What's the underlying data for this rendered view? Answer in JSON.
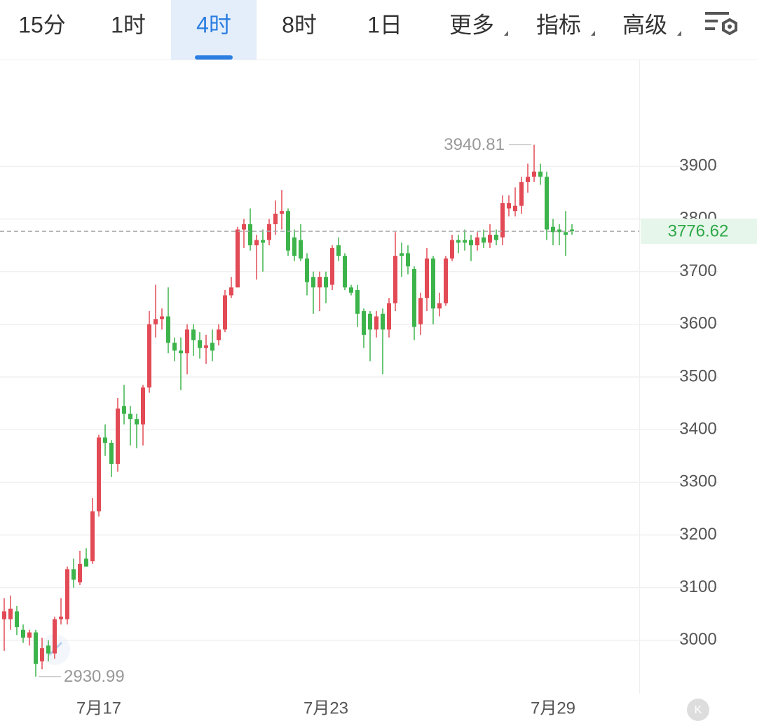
{
  "tabs": [
    "15分",
    "1时",
    "4时",
    "8时",
    "1日",
    "更多",
    "指标",
    "高级"
  ],
  "active_tab": 2,
  "chart_data": {
    "type": "candlestick",
    "categories": [
      null,
      null,
      null,
      null,
      null,
      null,
      null,
      null,
      null,
      null,
      null,
      null,
      null,
      null,
      null,
      "7月17",
      null,
      null,
      null,
      null,
      null,
      null,
      null,
      null,
      null,
      null,
      null,
      null,
      null,
      null,
      null,
      null,
      null,
      null,
      null,
      null,
      null,
      null,
      null,
      null,
      null,
      null,
      null,
      null,
      null,
      null,
      null,
      null,
      null,
      null,
      null,
      "7月23",
      null,
      null,
      null,
      null,
      null,
      null,
      null,
      null,
      null,
      null,
      null,
      null,
      null,
      null,
      null,
      null,
      null,
      null,
      null,
      null,
      null,
      null,
      null,
      null,
      null,
      null,
      null,
      null,
      null,
      null,
      null,
      null,
      null,
      null,
      null,
      "7月29",
      null,
      null,
      null
    ],
    "open": [
      3040,
      3040,
      3055,
      3020,
      3005,
      3015,
      2960,
      2990,
      2975,
      3040,
      3040,
      3135,
      3110,
      3155,
      3150,
      3245,
      3385,
      3375,
      3335,
      3445,
      3430,
      3420,
      3410,
      3480,
      3600,
      3610,
      3615,
      3565,
      3550,
      3545,
      3590,
      3570,
      3555,
      3565,
      3570,
      3590,
      3655,
      3670,
      3780,
      3790,
      3750,
      3760,
      3760,
      3790,
      3810,
      3815,
      3765,
      3760,
      3725,
      3690,
      3670,
      3690,
      3675,
      3750,
      3730,
      3670,
      3665,
      3625,
      3620,
      3590,
      3620,
      3590,
      3640,
      3735,
      3735,
      3705,
      3600,
      3650,
      3725,
      3630,
      3640,
      3725,
      3760,
      3760,
      3760,
      3750,
      3765,
      3755,
      3770,
      3765,
      3820,
      3815,
      3825,
      3870,
      3880,
      3890,
      3880,
      3785,
      3780,
      3775,
      3780
    ],
    "high": [
      3080,
      3085,
      3065,
      3030,
      3020,
      3020,
      3005,
      3000,
      3045,
      3080,
      3140,
      3155,
      3170,
      3175,
      3270,
      3390,
      3410,
      3380,
      3460,
      3485,
      3445,
      3430,
      3485,
      3625,
      3675,
      3630,
      3670,
      3575,
      3575,
      3600,
      3600,
      3585,
      3580,
      3590,
      3600,
      3665,
      3690,
      3785,
      3800,
      3820,
      3770,
      3780,
      3800,
      3835,
      3855,
      3820,
      3780,
      3790,
      3735,
      3700,
      3700,
      3700,
      3750,
      3765,
      3735,
      3675,
      3675,
      3630,
      3625,
      3625,
      3630,
      3650,
      3775,
      3755,
      3750,
      3710,
      3660,
      3745,
      3730,
      3660,
      3730,
      3770,
      3770,
      3780,
      3770,
      3775,
      3780,
      3790,
      3780,
      3845,
      3845,
      3860,
      3880,
      3905,
      3940.81,
      3905,
      3890,
      3800,
      3790,
      3815,
      3790
    ],
    "low": [
      2980,
      3020,
      3010,
      2995,
      2990,
      2930.99,
      2945,
      2960,
      2965,
      3030,
      3030,
      3100,
      3105,
      3140,
      3145,
      3235,
      3350,
      3310,
      3320,
      3410,
      3370,
      3365,
      3370,
      3470,
      3575,
      3590,
      3545,
      3530,
      3475,
      3505,
      3540,
      3535,
      3525,
      3530,
      3560,
      3585,
      3650,
      3670,
      3745,
      3740,
      3685,
      3700,
      3750,
      3770,
      3780,
      3730,
      3720,
      3720,
      3655,
      3620,
      3625,
      3640,
      3665,
      3720,
      3665,
      3655,
      3595,
      3555,
      3530,
      3575,
      3505,
      3575,
      3625,
      3690,
      3695,
      3570,
      3580,
      3625,
      3600,
      3615,
      3635,
      3720,
      3735,
      3740,
      3720,
      3740,
      3745,
      3745,
      3750,
      3750,
      3805,
      3805,
      3810,
      3850,
      3870,
      3865,
      3760,
      3750,
      3750,
      3730,
      3770
    ],
    "close": [
      3055,
      3060,
      3025,
      3005,
      3015,
      2955,
      2985,
      2975,
      3040,
      3045,
      3135,
      3115,
      3145,
      3140,
      3245,
      3385,
      3375,
      3335,
      3440,
      3430,
      3420,
      3410,
      3480,
      3600,
      3610,
      3615,
      3565,
      3550,
      3545,
      3590,
      3570,
      3555,
      3560,
      3550,
      3590,
      3655,
      3670,
      3780,
      3790,
      3750,
      3760,
      3755,
      3790,
      3810,
      3815,
      3740,
      3730,
      3725,
      3680,
      3670,
      3690,
      3670,
      3745,
      3730,
      3670,
      3660,
      3620,
      3580,
      3590,
      3615,
      3590,
      3640,
      3730,
      3730,
      3710,
      3595,
      3650,
      3725,
      3630,
      3640,
      3725,
      3760,
      3755,
      3755,
      3750,
      3765,
      3755,
      3770,
      3760,
      3830,
      3830,
      3825,
      3870,
      3880,
      3890,
      3880,
      3780,
      3775,
      3775,
      3770,
      3776.62
    ],
    "up_color": "#e24a55",
    "down_color": "#3cb44b",
    "ylim": [
      2900,
      4100
    ],
    "yticks": [
      3000,
      3100,
      3200,
      3300,
      3400,
      3500,
      3600,
      3700,
      3800,
      3900
    ],
    "grid": true
  }
}
